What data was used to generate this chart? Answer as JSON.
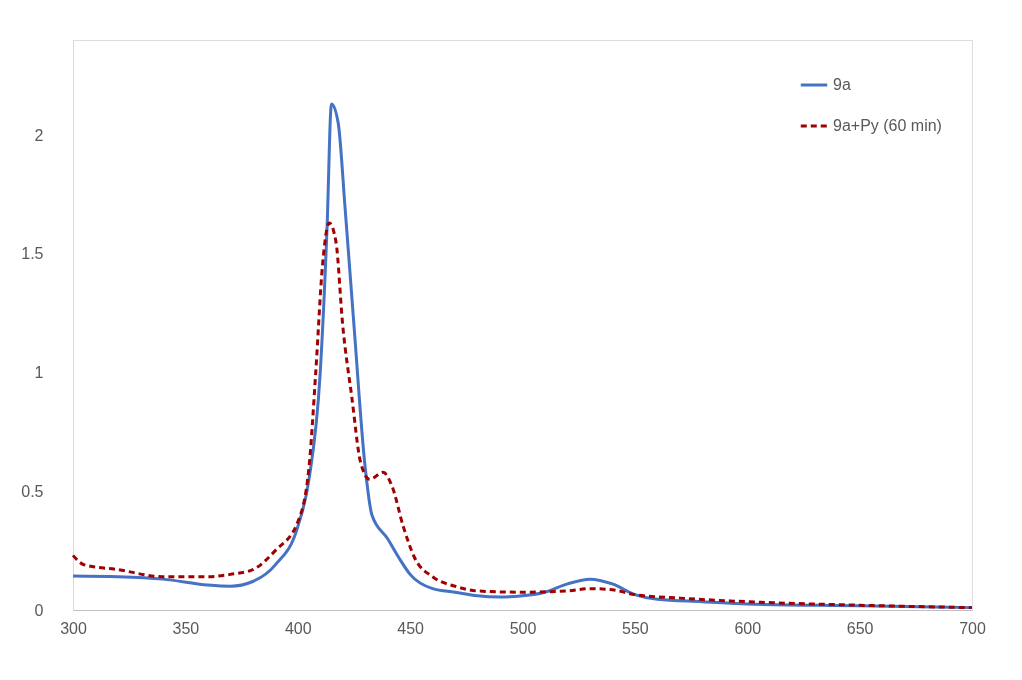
{
  "chart_data": {
    "type": "line",
    "xlim": [
      300,
      700
    ],
    "xticks": [
      300,
      350,
      400,
      450,
      500,
      550,
      600,
      650,
      700
    ],
    "ylim": [
      0,
      2.4
    ],
    "yticks": [
      0,
      0.5,
      1,
      1.5,
      2
    ],
    "grid": false,
    "legend": "top right",
    "marker": "none",
    "series": [
      {
        "name": "9a",
        "color": "#4472c4",
        "line_style": "solid",
        "x": [
          300,
          320,
          340,
          360,
          370,
          380,
          390,
          400,
          405,
          410,
          413,
          415,
          418,
          421,
          425,
          430,
          433,
          440,
          445,
          450,
          460,
          470,
          480,
          490,
          500,
          510,
          520,
          530,
          540,
          550,
          560,
          580,
          600,
          650,
          700
        ],
        "values": [
          0.143,
          0.14,
          0.13,
          0.105,
          0.1,
          0.12,
          0.19,
          0.35,
          0.55,
          1.0,
          1.6,
          2.13,
          2.05,
          1.7,
          1.2,
          0.6,
          0.4,
          0.3,
          0.22,
          0.15,
          0.09,
          0.075,
          0.06,
          0.055,
          0.06,
          0.075,
          0.11,
          0.13,
          0.11,
          0.065,
          0.045,
          0.035,
          0.025,
          0.018,
          0.01
        ]
      },
      {
        "name": "9a+Py (60 min)",
        "color": "#a00000",
        "line_style": "dashed",
        "x": [
          300,
          305,
          320,
          340,
          360,
          370,
          380,
          390,
          400,
          405,
          408,
          411,
          414,
          417,
          420,
          424,
          428,
          432,
          438,
          442,
          447,
          452,
          460,
          470,
          480,
          500,
          520,
          530,
          540,
          550,
          570,
          600,
          650,
          700
        ],
        "values": [
          0.23,
          0.19,
          0.17,
          0.14,
          0.14,
          0.15,
          0.17,
          0.25,
          0.37,
          0.6,
          1.0,
          1.45,
          1.63,
          1.55,
          1.2,
          0.9,
          0.62,
          0.55,
          0.58,
          0.52,
          0.35,
          0.22,
          0.14,
          0.1,
          0.08,
          0.075,
          0.08,
          0.09,
          0.085,
          0.065,
          0.05,
          0.035,
          0.02,
          0.01
        ]
      }
    ]
  }
}
